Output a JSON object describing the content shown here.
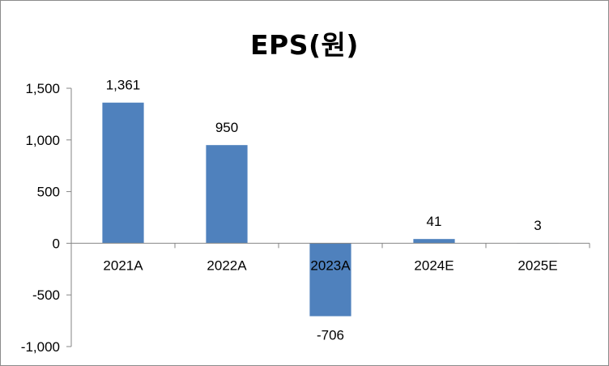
{
  "chart_data": {
    "type": "bar",
    "title": "EPS(원)",
    "xlabel": "",
    "ylabel": "",
    "categories": [
      "2021A",
      "2022A",
      "2023A",
      "2024E",
      "2025E"
    ],
    "values": [
      1361,
      950,
      -706,
      41,
      3
    ],
    "data_labels": [
      "1,361",
      "950",
      "-706",
      "41",
      "3"
    ],
    "y_ticks": [
      1500,
      1000,
      500,
      0,
      -500,
      -1000
    ],
    "y_tick_labels": [
      "1,500",
      "1,000",
      "500",
      "0",
      "-500",
      "-1,000"
    ],
    "ylim": [
      -1000,
      1500
    ],
    "grid": false,
    "legend": "none",
    "bar_color": "#4f81bd",
    "axis_color": "#868686"
  }
}
